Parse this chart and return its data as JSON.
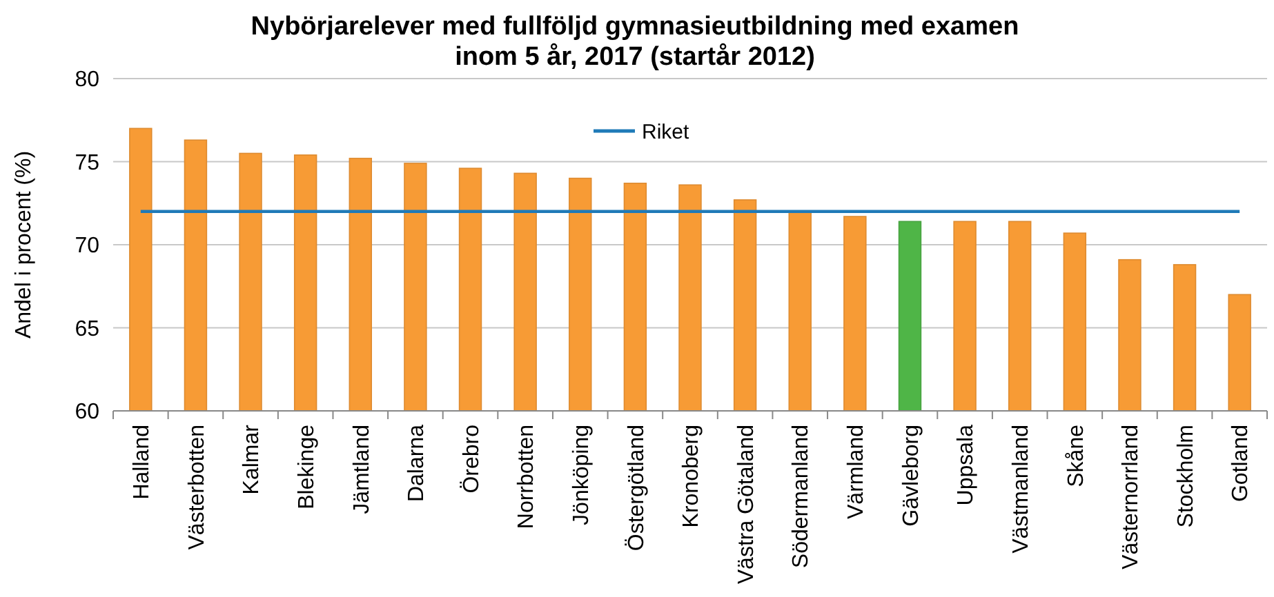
{
  "chart_data": {
    "type": "bar",
    "title": "Nybörjarelever med fullföljd gymnasieutbildning med examen\ninom 5 år, 2017 (startår 2012)",
    "ylabel": "Andel i procent (%)",
    "categories": [
      "Halland",
      "Västerbotten",
      "Kalmar",
      "Blekinge",
      "Jämtland",
      "Dalarna",
      "Örebro",
      "Norrbotten",
      "Jönköping",
      "Östergötland",
      "Kronoberg",
      "Västra Götaland",
      "Södermanland",
      "Värmland",
      "Gävleborg",
      "Uppsala",
      "Västmanland",
      "Skåne",
      "Västernorrland",
      "Stockholm",
      "Gotland"
    ],
    "series": [
      {
        "values": [
          77.0,
          76.3,
          75.5,
          75.4,
          75.2,
          74.9,
          74.6,
          74.3,
          74.0,
          73.7,
          73.6,
          72.7,
          72.0,
          71.7,
          71.4,
          71.4,
          71.4,
          70.7,
          69.1,
          68.8,
          67.0
        ],
        "colors": [
          "#f79b35",
          "#f79b35",
          "#f79b35",
          "#f79b35",
          "#f79b35",
          "#f79b35",
          "#f79b35",
          "#f79b35",
          "#f79b35",
          "#f79b35",
          "#f79b35",
          "#f79b35",
          "#f79b35",
          "#f79b35",
          "#4fb547",
          "#f79b35",
          "#f79b35",
          "#f79b35",
          "#f79b35",
          "#f79b35",
          "#f79b35"
        ]
      },
      {
        "type": "line",
        "name": "Riket",
        "color": "#1f7ab8",
        "values": [
          72,
          72,
          72,
          72,
          72,
          72,
          72,
          72,
          72,
          72,
          72,
          72,
          72,
          72,
          72,
          72,
          72,
          72,
          72,
          72,
          72
        ]
      }
    ],
    "ylim": [
      60,
      80
    ],
    "yticks": [
      60,
      65,
      70,
      75,
      80
    ],
    "grid": "y",
    "legend": "top",
    "marker": "none"
  }
}
